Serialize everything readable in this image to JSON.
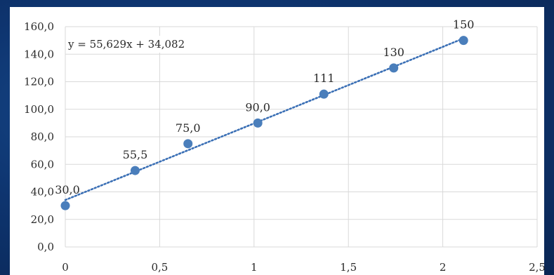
{
  "chart_data": {
    "type": "scatter",
    "title": "",
    "xlabel": "",
    "ylabel": "",
    "xlim": [
      0,
      2.5
    ],
    "ylim": [
      0,
      160
    ],
    "x_ticks": [
      "0",
      "0,5",
      "1",
      "1,5",
      "2",
      "2,5"
    ],
    "y_ticks": [
      "0,0",
      "20,0",
      "40,0",
      "60,0",
      "80,0",
      "100,0",
      "120,0",
      "140,0",
      "160,0"
    ],
    "grid": true,
    "marker_color": "#4a7ebb",
    "trendline_color": "#3a6fb5",
    "points": [
      {
        "x": 0,
        "y": 30,
        "label": "30,0"
      },
      {
        "x": 0.37,
        "y": 55.5,
        "label": "55,5"
      },
      {
        "x": 0.65,
        "y": 75,
        "label": "75,0"
      },
      {
        "x": 1.02,
        "y": 90,
        "label": "90,0"
      },
      {
        "x": 1.37,
        "y": 111,
        "label": "111"
      },
      {
        "x": 1.74,
        "y": 130,
        "label": "130"
      },
      {
        "x": 2.11,
        "y": 150,
        "label": "150"
      }
    ],
    "trendline": {
      "slope": 55.629,
      "intercept": 34.082,
      "x_range": [
        0,
        2.11
      ],
      "equation": "y = 55,629x + 34,082"
    }
  }
}
